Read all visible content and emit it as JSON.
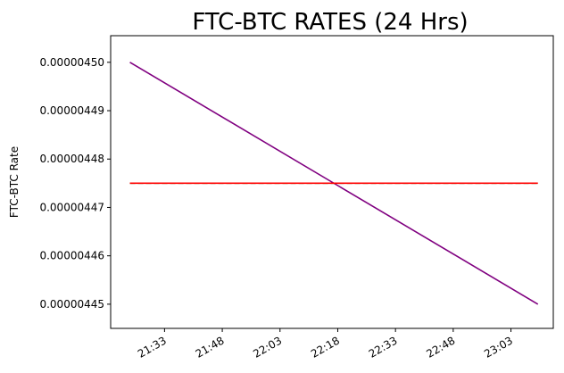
{
  "chart_data": {
    "type": "line",
    "title": "FTC-BTC RATES (24 Hrs)",
    "xlabel": "",
    "ylabel": "FTC-BTC Rate",
    "x": [
      "21:24",
      "23:10"
    ],
    "x_ticks": [
      "21:33",
      "21:48",
      "22:03",
      "22:18",
      "22:33",
      "22:48",
      "23:03"
    ],
    "xlim": [
      "21:19",
      "23:14"
    ],
    "y_ticks": [
      "0.00000450",
      "0.00000449",
      "0.00000448",
      "0.00000447",
      "0.00000446",
      "0.00000445"
    ],
    "ylim": [
      4.445e-06,
      4.5055e-06
    ],
    "grid": false,
    "series": [
      {
        "values": [
          4.5e-06,
          4.45e-06
        ],
        "color": "#800080",
        "style": "solid"
      },
      {
        "values": [
          4.475e-06,
          4.475e-06
        ],
        "color": "#008000",
        "style": "dashed"
      },
      {
        "values": [
          4.475e-06,
          4.475e-06
        ],
        "color": "#ff0000",
        "style": "solid"
      }
    ]
  }
}
